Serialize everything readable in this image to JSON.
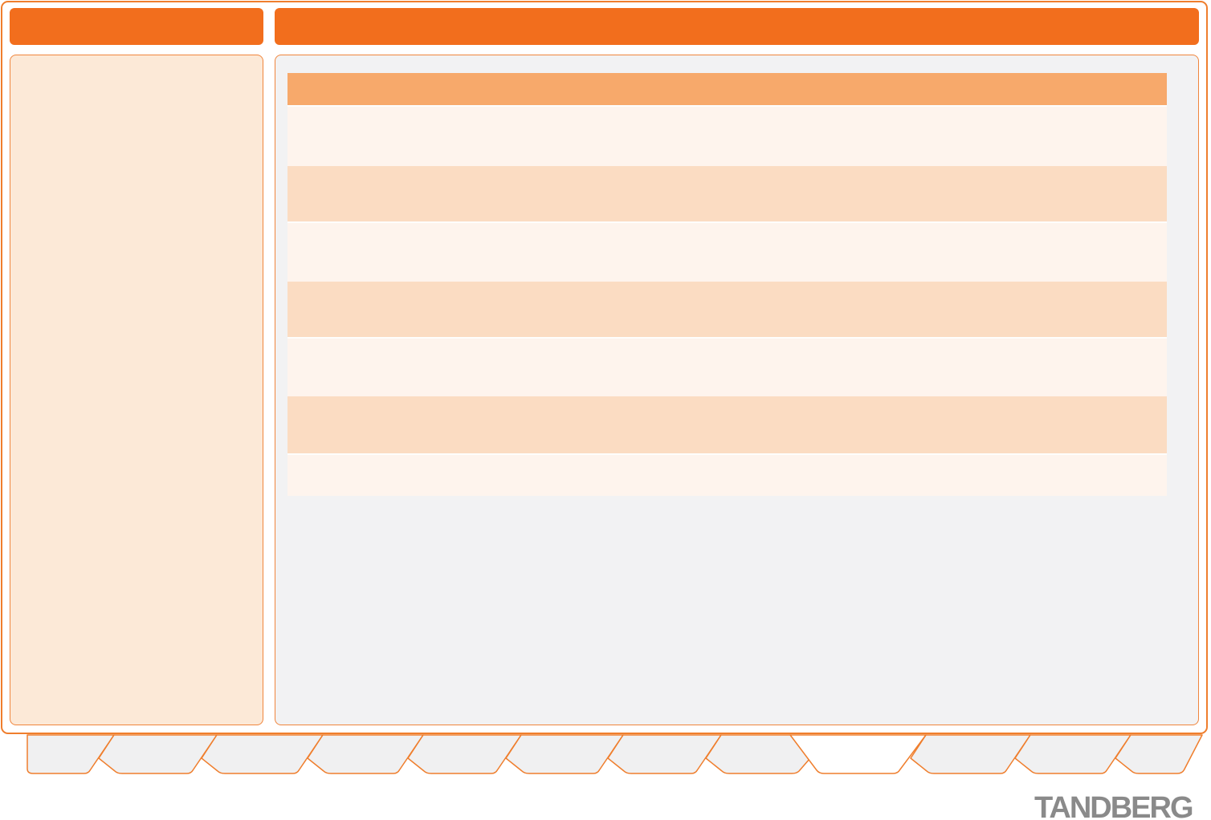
{
  "brand": {
    "logo_text": "TANDBERG",
    "logo_color": "#8A8A8A",
    "accent_orange": "#F26E1D",
    "border_orange": "#EF7E2D",
    "panel_border_orange": "#F0853C"
  },
  "header": {
    "left_bar": {
      "label": ""
    },
    "right_bar": {
      "label": ""
    }
  },
  "sidebar": {
    "label": "",
    "background": "#FCE9D7"
  },
  "main": {
    "background": "#F2F2F3",
    "table": {
      "colors": {
        "header": "#F7A96B",
        "peach": "#FBDCC2",
        "light": "#FEF4ED"
      },
      "rows": [
        {
          "role": "header",
          "cells": []
        },
        {
          "role": "light",
          "cells": []
        },
        {
          "role": "peach",
          "cells": []
        },
        {
          "role": "light",
          "cells": []
        },
        {
          "role": "peach",
          "cells": []
        },
        {
          "role": "light",
          "cells": []
        },
        {
          "role": "peach",
          "cells": []
        },
        {
          "role": "light",
          "cells": []
        }
      ]
    }
  },
  "footer": {
    "tab_fill": "#F0F0F1",
    "tab_active_fill": "#FFFFFF",
    "tabs": [
      {
        "label": "",
        "active": false
      },
      {
        "label": "",
        "active": false
      },
      {
        "label": "",
        "active": false
      },
      {
        "label": "",
        "active": false
      },
      {
        "label": "",
        "active": false
      },
      {
        "label": "",
        "active": false
      },
      {
        "label": "",
        "active": false
      },
      {
        "label": "",
        "active": false
      },
      {
        "label": "",
        "active": true
      },
      {
        "label": "",
        "active": false
      },
      {
        "label": "",
        "active": false
      },
      {
        "label": "",
        "active": false
      }
    ]
  }
}
